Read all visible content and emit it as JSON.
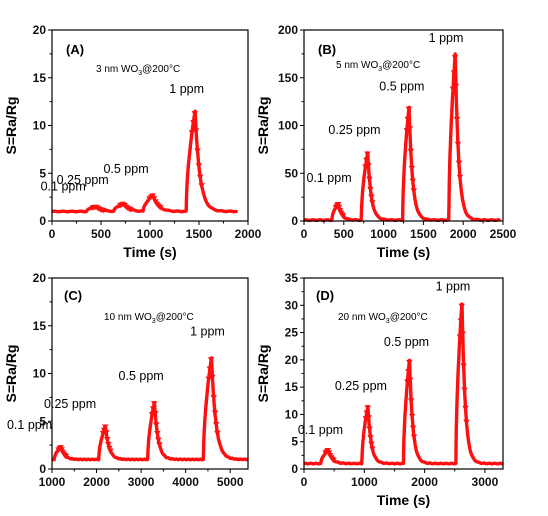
{
  "chart_data": [
    {
      "id": "A",
      "type": "line",
      "panel_label": "(A)",
      "condition_prefix": "3 nm WO",
      "condition_sub": "3",
      "condition_suffix": "@200°C",
      "xlabel": "Time (s)",
      "ylabel": "S=Ra/Rg",
      "xlim": [
        0,
        2000
      ],
      "ylim": [
        0,
        20
      ],
      "xticks": [
        0,
        500,
        1000,
        1500,
        2000
      ],
      "yticks": [
        0,
        5,
        10,
        15,
        20
      ],
      "baseline": 1.0,
      "pulses": [
        {
          "label": "0.1 ppm",
          "start": 350,
          "end": 450,
          "peak": 1.5
        },
        {
          "label": "0.25 ppm",
          "start": 630,
          "end": 730,
          "peak": 1.8
        },
        {
          "label": "0.5 ppm",
          "start": 930,
          "end": 1030,
          "peak": 2.7
        },
        {
          "label": "1 ppm",
          "start": 1370,
          "end": 1460,
          "peak": 11.5
        }
      ],
      "x_end": 1880
    },
    {
      "id": "B",
      "type": "line",
      "panel_label": "(B)",
      "condition_prefix": "5 nm WO",
      "condition_sub": "3",
      "condition_suffix": "@200°C",
      "xlabel": "Time (s)",
      "ylabel": "S=Ra/Rg",
      "xlim": [
        0,
        2500
      ],
      "ylim": [
        0,
        200
      ],
      "xticks": [
        0,
        500,
        1000,
        1500,
        2000,
        2500
      ],
      "yticks": [
        0,
        50,
        100,
        150,
        200
      ],
      "baseline": 1.0,
      "pulses": [
        {
          "label": "0.1 ppm",
          "start": 350,
          "end": 430,
          "peak": 18
        },
        {
          "label": "0.25 ppm",
          "start": 720,
          "end": 800,
          "peak": 72
        },
        {
          "label": "0.5 ppm",
          "start": 1240,
          "end": 1320,
          "peak": 120
        },
        {
          "label": "1 ppm",
          "start": 1820,
          "end": 1900,
          "peak": 175
        }
      ],
      "x_end": 2450
    },
    {
      "id": "C",
      "type": "line",
      "panel_label": "(C)",
      "condition_prefix": "10 nm WO",
      "condition_sub": "3",
      "condition_suffix": "@200°C",
      "xlabel": "",
      "ylabel": "S=Ra/Rg",
      "xlim": [
        1000,
        5400
      ],
      "ylim": [
        0,
        20
      ],
      "xticks": [
        1000,
        2000,
        3000,
        4000,
        5000
      ],
      "yticks": [
        0,
        5,
        10,
        15,
        20
      ],
      "baseline": 1.0,
      "pulses": [
        {
          "label": "0.1 ppm",
          "start": 1050,
          "end": 1200,
          "peak": 2.3
        },
        {
          "label": "0.25 ppm",
          "start": 2050,
          "end": 2200,
          "peak": 4.5
        },
        {
          "label": "0.5 ppm",
          "start": 3150,
          "end": 3300,
          "peak": 7.0
        },
        {
          "label": "1 ppm",
          "start": 4400,
          "end": 4580,
          "peak": 11.7
        }
      ],
      "x_start": 820,
      "x_end": 5400
    },
    {
      "id": "D",
      "type": "line",
      "panel_label": "(D)",
      "condition_prefix": "20 nm WO",
      "condition_sub": "3",
      "condition_suffix": "@200°C",
      "xlabel": "Time (s)",
      "ylabel": "S=Ra/Rg",
      "xlim": [
        0,
        3300
      ],
      "ylim": [
        0,
        35
      ],
      "xticks": [
        0,
        1000,
        2000,
        3000
      ],
      "yticks": [
        0,
        5,
        10,
        15,
        20,
        25,
        30,
        35
      ],
      "baseline": 1.0,
      "pulses": [
        {
          "label": "0.1 ppm",
          "start": 280,
          "end": 400,
          "peak": 3.5
        },
        {
          "label": "0.25 ppm",
          "start": 960,
          "end": 1060,
          "peak": 11.5
        },
        {
          "label": "0.5 ppm",
          "start": 1650,
          "end": 1750,
          "peak": 20.0
        },
        {
          "label": "1 ppm",
          "start": 2520,
          "end": 2620,
          "peak": 30.5
        }
      ],
      "x_end": 3300
    }
  ]
}
